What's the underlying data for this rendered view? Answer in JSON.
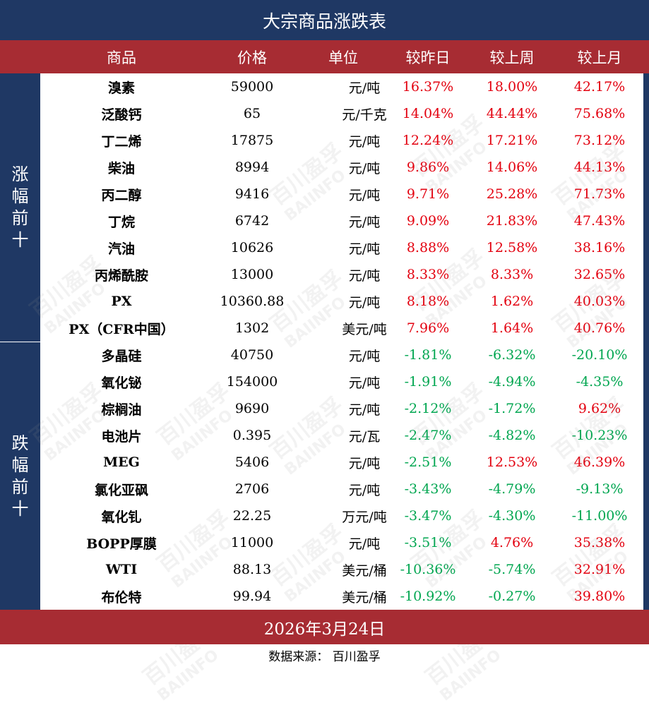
{
  "title": "大宗商品涨跌表",
  "headers": {
    "name": "商品",
    "price": "价格",
    "unit": "单位",
    "day": "较昨日",
    "week": "较上周",
    "month": "较上月"
  },
  "sections": {
    "gainers_label": "涨幅前十",
    "losers_label": "跌幅前十"
  },
  "colors": {
    "navy": "#1f3864",
    "header_red": "#a72c33",
    "up": "#e3000f",
    "down": "#00a650"
  },
  "rows": [
    {
      "name": "溴素",
      "price": "59000",
      "unit": "元/吨",
      "day": "16.37%",
      "week": "18.00%",
      "month": "42.17%"
    },
    {
      "name": "泛酸钙",
      "price": "65",
      "unit": "元/千克",
      "day": "14.04%",
      "week": "44.44%",
      "month": "75.68%"
    },
    {
      "name": "丁二烯",
      "price": "17875",
      "unit": "元/吨",
      "day": "12.24%",
      "week": "17.21%",
      "month": "73.12%"
    },
    {
      "name": "柴油",
      "price": "8994",
      "unit": "元/吨",
      "day": "9.86%",
      "week": "14.06%",
      "month": "44.13%"
    },
    {
      "name": "丙二醇",
      "price": "9416",
      "unit": "元/吨",
      "day": "9.71%",
      "week": "25.28%",
      "month": "71.73%"
    },
    {
      "name": "丁烷",
      "price": "6742",
      "unit": "元/吨",
      "day": "9.09%",
      "week": "21.83%",
      "month": "47.43%"
    },
    {
      "name": "汽油",
      "price": "10626",
      "unit": "元/吨",
      "day": "8.88%",
      "week": "12.58%",
      "month": "38.16%"
    },
    {
      "name": "丙烯酰胺",
      "price": "13000",
      "unit": "元/吨",
      "day": "8.33%",
      "week": "8.33%",
      "month": "32.65%"
    },
    {
      "name": "PX",
      "price": "10360.88",
      "unit": "元/吨",
      "day": "8.18%",
      "week": "1.62%",
      "month": "40.03%"
    },
    {
      "name": "PX（CFR中国）",
      "price": "1302",
      "unit": "美元/吨",
      "day": "7.96%",
      "week": "1.64%",
      "month": "40.76%"
    },
    {
      "name": "多晶硅",
      "price": "40750",
      "unit": "元/吨",
      "day": "-1.81%",
      "week": "-6.32%",
      "month": "-20.10%"
    },
    {
      "name": "氧化铋",
      "price": "154000",
      "unit": "元/吨",
      "day": "-1.91%",
      "week": "-4.94%",
      "month": "-4.35%"
    },
    {
      "name": "棕榈油",
      "price": "9690",
      "unit": "元/吨",
      "day": "-2.12%",
      "week": "-1.72%",
      "month": "9.62%"
    },
    {
      "name": "电池片",
      "price": "0.395",
      "unit": "元/瓦",
      "day": "-2.47%",
      "week": "-4.82%",
      "month": "-10.23%"
    },
    {
      "name": "MEG",
      "price": "5406",
      "unit": "元/吨",
      "day": "-2.51%",
      "week": "12.53%",
      "month": "46.39%"
    },
    {
      "name": "氯化亚砜",
      "price": "2706",
      "unit": "元/吨",
      "day": "-3.43%",
      "week": "-4.79%",
      "month": "-9.13%"
    },
    {
      "name": "氧化钆",
      "price": "22.25",
      "unit": "万元/吨",
      "day": "-3.47%",
      "week": "-4.30%",
      "month": "-11.00%"
    },
    {
      "name": "BOPP厚膜",
      "price": "11000",
      "unit": "元/吨",
      "day": "-3.51%",
      "week": "4.76%",
      "month": "35.38%"
    },
    {
      "name": "WTI",
      "price": "88.13",
      "unit": "美元/桶",
      "day": "-10.36%",
      "week": "-5.74%",
      "month": "32.91%"
    },
    {
      "name": "布伦特",
      "price": "99.94",
      "unit": "美元/桶",
      "day": "-10.92%",
      "week": "-0.27%",
      "month": "39.80%"
    }
  ],
  "date": "2026年3月24日",
  "source": "数据来源：  百川盈孚",
  "watermark": [
    "百川盈孚",
    "BAIINFO"
  ]
}
